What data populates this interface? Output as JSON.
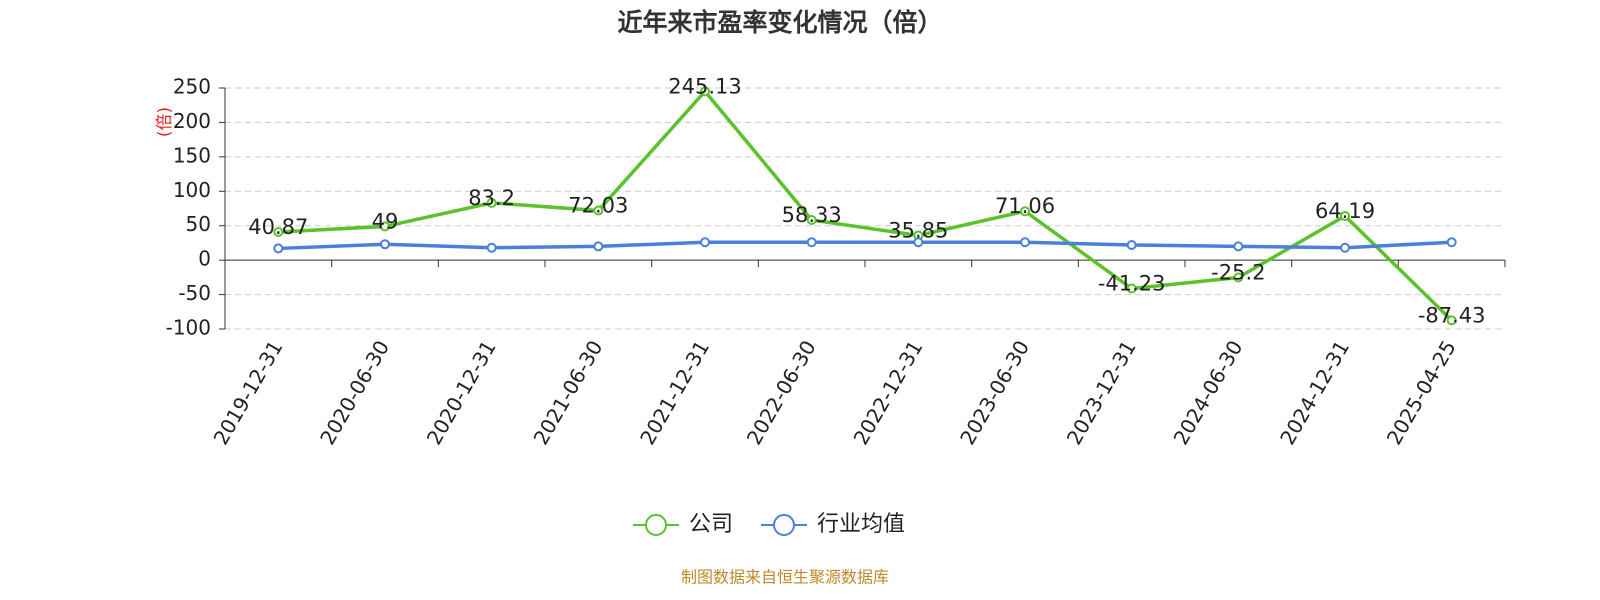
{
  "chart_data": {
    "type": "line",
    "title": "近年来市盈率变化情况（倍）",
    "y_label": "(倍)",
    "categories": [
      "2019-12-31",
      "2020-06-30",
      "2020-12-31",
      "2021-06-30",
      "2021-12-31",
      "2022-06-30",
      "2022-12-31",
      "2023-06-30",
      "2023-12-31",
      "2024-06-30",
      "2024-12-31",
      "2025-04-25"
    ],
    "series": [
      {
        "name": "公司",
        "color": "#5ac22a",
        "values": [
          40.87,
          49,
          83.2,
          72.03,
          245.13,
          58.33,
          35.85,
          71.06,
          -41.23,
          -25.2,
          64.19,
          -87.43
        ]
      },
      {
        "name": "行业均值",
        "color": "#4a7fdc",
        "values": [
          17,
          23,
          18,
          20,
          26,
          26,
          26,
          26,
          22,
          20,
          18,
          26
        ]
      }
    ],
    "ylim": [
      -100,
      250
    ],
    "yticks": [
      -100,
      -50,
      0,
      50,
      100,
      150,
      200,
      250
    ],
    "grid": true,
    "source": "制图数据来自恒生聚源数据库"
  }
}
